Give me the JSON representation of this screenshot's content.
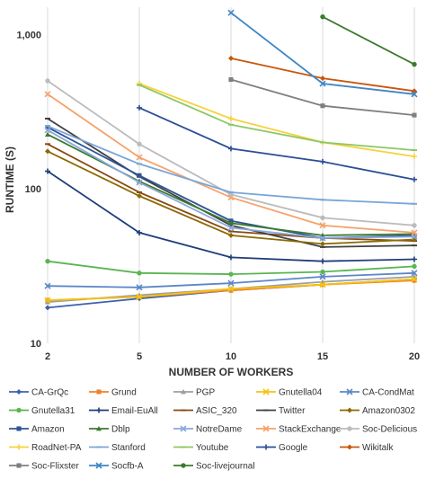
{
  "chart_data": {
    "type": "line",
    "title": "",
    "xlabel": "NUMBER OF WORKERS",
    "ylabel": "RUNTIME (S)",
    "x": [
      2,
      5,
      10,
      15,
      20
    ],
    "x_tick_labels": [
      "2",
      "5",
      "10",
      "15",
      "20"
    ],
    "y_scale": "log",
    "ylim": [
      10,
      1500
    ],
    "y_ticks": [
      10,
      100,
      1000
    ],
    "y_tick_labels": [
      "10",
      "100",
      "1,000"
    ],
    "grid": "vertical",
    "legend_position": "bottom",
    "series": [
      {
        "name": "CA-GrQc",
        "color": "#3a62ad",
        "marker": "diamond",
        "values": [
          17,
          19.5,
          22,
          24,
          26
        ]
      },
      {
        "name": "Grund",
        "color": "#f0812a",
        "marker": "square",
        "values": [
          19,
          20,
          22,
          24,
          25.5
        ]
      },
      {
        "name": "PGP",
        "color": "#9e9e9e",
        "marker": "triangle",
        "values": [
          18.5,
          20.5,
          22.5,
          25,
          27
        ]
      },
      {
        "name": "Gnutella04",
        "color": "#f5c20f",
        "marker": "x",
        "values": [
          19,
          20,
          22.5,
          24,
          26
        ]
      },
      {
        "name": "CA-CondMat",
        "color": "#5b87c7",
        "marker": "x",
        "values": [
          23.5,
          23,
          24.5,
          27,
          28.5
        ]
      },
      {
        "name": "Gnutella31",
        "color": "#5ab552",
        "marker": "circle",
        "values": [
          34,
          28.5,
          28,
          29,
          31.5
        ]
      },
      {
        "name": "Email-EuAll",
        "color": "#1f3e7a",
        "marker": "plus",
        "values": [
          130,
          52,
          36,
          34,
          35
        ]
      },
      {
        "name": "ASIC_320",
        "color": "#8a4a12",
        "marker": "dash",
        "values": [
          195,
          95,
          53,
          48,
          46
        ]
      },
      {
        "name": "Twitter",
        "color": "#404040",
        "marker": "dash",
        "values": [
          285,
          120,
          58,
          42,
          43
        ]
      },
      {
        "name": "Amazon0302",
        "color": "#8c6a00",
        "marker": "diamond",
        "values": [
          175,
          90,
          50,
          44,
          47
        ]
      },
      {
        "name": "Amazon",
        "color": "#2e5596",
        "marker": "square",
        "values": [
          250,
          122,
          62,
          48,
          50
        ]
      },
      {
        "name": "Dblp",
        "color": "#3c7a2e",
        "marker": "triangle",
        "values": [
          225,
          112,
          60,
          50,
          51
        ]
      },
      {
        "name": "NotreDame",
        "color": "#8aa8dc",
        "marker": "x",
        "values": [
          240,
          110,
          56,
          48,
          49
        ]
      },
      {
        "name": "StackExchange",
        "color": "#f5a26a",
        "marker": "x",
        "values": [
          410,
          160,
          88,
          58,
          52
        ]
      },
      {
        "name": "Soc-Delicious",
        "color": "#bcbcbc",
        "marker": "circle",
        "values": [
          500,
          195,
          92,
          65,
          58
        ]
      },
      {
        "name": "RoadNet-PA",
        "color": "#f7d23e",
        "marker": "plus",
        "values": [
          null,
          480,
          285,
          200,
          162
        ]
      },
      {
        "name": "Stanford",
        "color": "#7aa6d8",
        "marker": "dash",
        "values": [
          255,
          145,
          95,
          85,
          80
        ]
      },
      {
        "name": "Youtube",
        "color": "#8cc765",
        "marker": "dash",
        "values": [
          null,
          470,
          260,
          200,
          178
        ]
      },
      {
        "name": "Google",
        "color": "#2b4e97",
        "marker": "plus",
        "values": [
          null,
          335,
          182,
          150,
          115
        ]
      },
      {
        "name": "Wikitalk",
        "color": "#c9560c",
        "marker": "diamond",
        "values": [
          null,
          null,
          700,
          520,
          430
        ]
      },
      {
        "name": "Soc-Flixster",
        "color": "#7f7f7f",
        "marker": "square",
        "values": [
          null,
          null,
          510,
          345,
          300
        ]
      },
      {
        "name": "Socfb-A",
        "color": "#3d86c6",
        "marker": "x",
        "values": [
          null,
          null,
          1380,
          480,
          410
        ]
      },
      {
        "name": "Soc-livejournal",
        "color": "#3c7a2e",
        "marker": "circle",
        "values": [
          null,
          null,
          null,
          1300,
          640
        ]
      }
    ]
  }
}
